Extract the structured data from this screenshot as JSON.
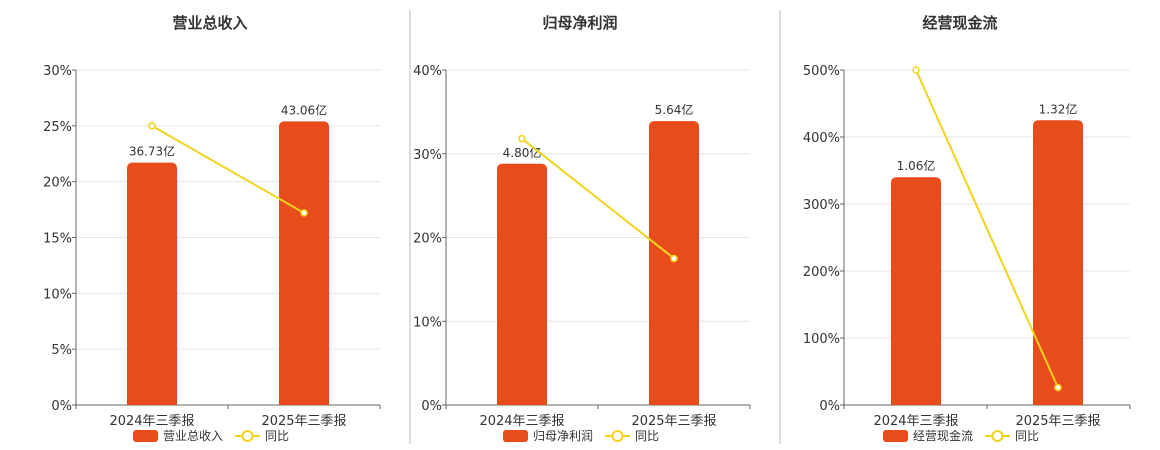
{
  "colors": {
    "bar": "#e84c1a",
    "line": "#f2d31b",
    "grid": "#e6e6e6",
    "axis": "#666666",
    "divider": "#bbbbbb"
  },
  "chart_data": [
    {
      "type": "bar",
      "title": "营业总收入",
      "categories": [
        "2024年三季报",
        "2025年三季报"
      ],
      "bar_series": {
        "name": "营业总收入",
        "values": [
          36.73,
          43.06
        ],
        "labels": [
          "36.73亿",
          "43.06亿"
        ]
      },
      "bar_heights_pct": [
        21.7,
        25.4
      ],
      "line_series": {
        "name": "同比",
        "values": [
          25.0,
          17.2
        ]
      },
      "yticks": [
        "0%",
        "5%",
        "10%",
        "15%",
        "20%",
        "25%",
        "30%"
      ],
      "ylim": [
        0,
        30
      ],
      "grid": true,
      "legend": "bottom"
    },
    {
      "type": "bar",
      "title": "归母净利润",
      "categories": [
        "2024年三季报",
        "2025年三季报"
      ],
      "bar_series": {
        "name": "归母净利润",
        "values": [
          4.8,
          5.64
        ],
        "labels": [
          "4.80亿",
          "5.64亿"
        ]
      },
      "bar_heights_pct": [
        28.8,
        33.9
      ],
      "line_series": {
        "name": "同比",
        "values": [
          31.8,
          17.5
        ]
      },
      "yticks": [
        "0%",
        "10%",
        "20%",
        "30%",
        "40%"
      ],
      "ylim": [
        0,
        40
      ],
      "grid": true,
      "legend": "bottom"
    },
    {
      "type": "bar",
      "title": "经营现金流",
      "categories": [
        "2024年三季报",
        "2025年三季报"
      ],
      "bar_series": {
        "name": "经营现金流",
        "values": [
          1.06,
          1.32
        ],
        "labels": [
          "1.06亿",
          "1.32亿"
        ]
      },
      "bar_heights_pct": [
        340,
        425
      ],
      "line_series": {
        "name": "同比",
        "values": [
          500,
          26
        ]
      },
      "yticks": [
        "0%",
        "100%",
        "200%",
        "300%",
        "400%",
        "500%"
      ],
      "ylim": [
        0,
        500
      ],
      "grid": true,
      "legend": "bottom"
    }
  ]
}
